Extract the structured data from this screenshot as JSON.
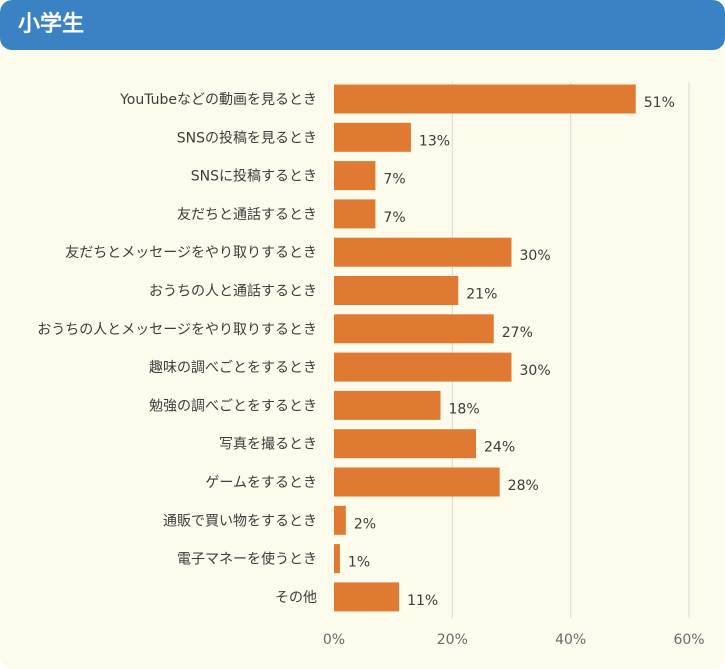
{
  "header": {
    "title": "小学生"
  },
  "chart_data": {
    "type": "bar",
    "orientation": "horizontal",
    "categories": [
      "YouTubeなどの動画を見るとき",
      "SNSの投稿を見るとき",
      "SNSに投稿するとき",
      "友だちと通話するとき",
      "友だちとメッセージをやり取りするとき",
      "おうちの人と通話するとき",
      "おうちの人とメッセージをやり取りするとき",
      "趣味の調べごとをするとき",
      "勉強の調べごとをするとき",
      "写真を撮るとき",
      "ゲームをするとき",
      "通販で買い物をするとき",
      "電子マネーを使うとき",
      "その他"
    ],
    "values": [
      51,
      13,
      7,
      7,
      30,
      21,
      27,
      30,
      18,
      24,
      28,
      2,
      1,
      11
    ],
    "value_labels": [
      "51%",
      "13%",
      "7%",
      "7%",
      "30%",
      "21%",
      "27%",
      "30%",
      "18%",
      "24%",
      "28%",
      "2%",
      "1%",
      "11%"
    ],
    "xlim": [
      0,
      60
    ],
    "xticks": [
      0,
      20,
      40,
      60
    ],
    "xtick_labels": [
      "0%",
      "20%",
      "40%",
      "60%"
    ],
    "grid": "vertical",
    "bar_color": "#e07a32",
    "grid_color": "#d8d8d8"
  }
}
